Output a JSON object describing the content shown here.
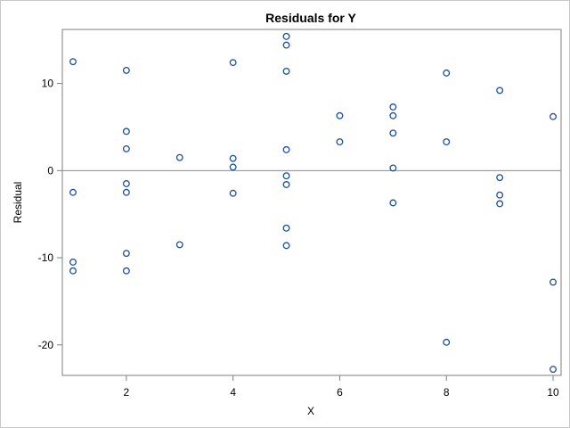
{
  "chart_data": {
    "type": "scatter",
    "title": "Residuals for Y",
    "xlabel": "X",
    "ylabel": "Residual",
    "xlim": [
      0.8,
      10.15
    ],
    "ylim": [
      -23.5,
      16.2
    ],
    "xticks": [
      2,
      4,
      6,
      8,
      10
    ],
    "yticks": [
      -20,
      -10,
      0,
      10
    ],
    "reference_line_y": 0,
    "marker_color": "#1f4e9a",
    "points": [
      {
        "x": 1,
        "y": 12.5
      },
      {
        "x": 1,
        "y": -2.5
      },
      {
        "x": 1,
        "y": -10.5
      },
      {
        "x": 1,
        "y": -11.5
      },
      {
        "x": 2,
        "y": 11.5
      },
      {
        "x": 2,
        "y": 4.5
      },
      {
        "x": 2,
        "y": 2.5
      },
      {
        "x": 2,
        "y": -1.5
      },
      {
        "x": 2,
        "y": -2.5
      },
      {
        "x": 2,
        "y": -9.5
      },
      {
        "x": 2,
        "y": -11.5
      },
      {
        "x": 3,
        "y": 1.5
      },
      {
        "x": 3,
        "y": -8.5
      },
      {
        "x": 4,
        "y": 12.4
      },
      {
        "x": 4,
        "y": 1.4
      },
      {
        "x": 4,
        "y": 0.4
      },
      {
        "x": 4,
        "y": -2.6
      },
      {
        "x": 5,
        "y": 15.4
      },
      {
        "x": 5,
        "y": 14.4
      },
      {
        "x": 5,
        "y": 11.4
      },
      {
        "x": 5,
        "y": 2.4
      },
      {
        "x": 5,
        "y": -0.6
      },
      {
        "x": 5,
        "y": -1.6
      },
      {
        "x": 5,
        "y": -6.6
      },
      {
        "x": 5,
        "y": -8.6
      },
      {
        "x": 6,
        "y": 6.3
      },
      {
        "x": 6,
        "y": 3.3
      },
      {
        "x": 7,
        "y": 7.3
      },
      {
        "x": 7,
        "y": 6.3
      },
      {
        "x": 7,
        "y": 4.3
      },
      {
        "x": 7,
        "y": 0.3
      },
      {
        "x": 7,
        "y": -3.7
      },
      {
        "x": 8,
        "y": 11.2
      },
      {
        "x": 8,
        "y": 3.3
      },
      {
        "x": 8,
        "y": -19.7
      },
      {
        "x": 9,
        "y": 9.2
      },
      {
        "x": 9,
        "y": -0.8
      },
      {
        "x": 9,
        "y": -2.8
      },
      {
        "x": 9,
        "y": -3.8
      },
      {
        "x": 10,
        "y": 6.2
      },
      {
        "x": 10,
        "y": -12.8
      },
      {
        "x": 10,
        "y": -22.8
      }
    ]
  }
}
